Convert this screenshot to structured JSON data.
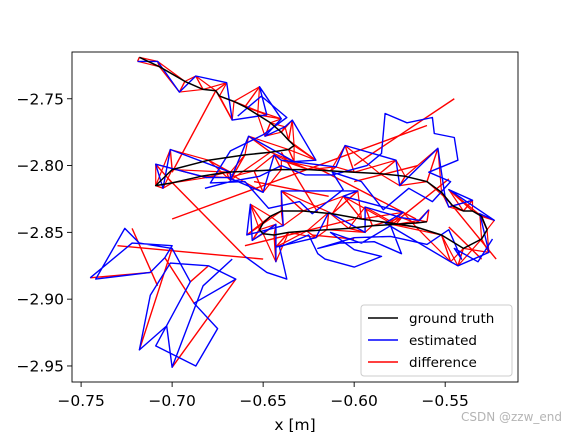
{
  "chart_data": {
    "type": "line",
    "xlabel": "x [m]",
    "ylabel": "",
    "xlim": [
      -0.755,
      -0.51
    ],
    "ylim": [
      -2.962,
      -2.715
    ],
    "xticks": [
      -0.75,
      -0.7,
      -0.65,
      -0.6,
      -0.55
    ],
    "xtick_labels": [
      "−0.75",
      "−0.70",
      "−0.65",
      "−0.60",
      "−0.55"
    ],
    "yticks": [
      -2.75,
      -2.8,
      -2.85,
      -2.9,
      -2.95
    ],
    "ytick_labels": [
      "−2.75",
      "−2.80",
      "−2.85",
      "−2.90",
      "−2.95"
    ],
    "grid": false,
    "legend_position": "lower-right",
    "series": [
      {
        "name": "ground truth",
        "color": "#000000",
        "x": [
          -0.718,
          -0.707,
          -0.693,
          -0.683,
          -0.676,
          -0.674,
          -0.666,
          -0.66,
          -0.653,
          -0.646,
          -0.64,
          -0.636,
          -0.633,
          -0.636,
          -0.646,
          -0.66,
          -0.68,
          -0.7,
          -0.709,
          -0.7,
          -0.684,
          -0.67,
          -0.655,
          -0.64,
          -0.625,
          -0.613,
          -0.6,
          -0.586,
          -0.572,
          -0.56,
          -0.552,
          -0.546,
          -0.54,
          -0.535,
          -0.53,
          -0.527,
          -0.53,
          -0.54,
          -0.552,
          -0.566,
          -0.58,
          -0.596,
          -0.612,
          -0.628,
          -0.64,
          -0.646,
          -0.65,
          -0.652,
          -0.65,
          -0.644,
          -0.636,
          -0.626,
          -0.615,
          -0.603,
          -0.59,
          -0.577,
          -0.566,
          -0.56
        ],
        "y": [
          -2.719,
          -2.726,
          -2.737,
          -2.743,
          -2.744,
          -2.748,
          -2.752,
          -2.756,
          -2.762,
          -2.768,
          -2.775,
          -2.781,
          -2.785,
          -2.788,
          -2.79,
          -2.792,
          -2.796,
          -2.803,
          -2.815,
          -2.813,
          -2.808,
          -2.805,
          -2.804,
          -2.803,
          -2.803,
          -2.804,
          -2.805,
          -2.806,
          -2.808,
          -2.812,
          -2.82,
          -2.83,
          -2.834,
          -2.834,
          -2.838,
          -2.848,
          -2.855,
          -2.862,
          -2.852,
          -2.846,
          -2.843,
          -2.84,
          -2.836,
          -2.834,
          -2.834,
          -2.838,
          -2.843,
          -2.848,
          -2.851,
          -2.852,
          -2.85,
          -2.849,
          -2.848,
          -2.847,
          -2.845,
          -2.844,
          -2.843,
          -2.842
        ]
      },
      {
        "name": "estimated",
        "color": "#0000ff",
        "x": [
          -0.719,
          -0.708,
          -0.696,
          -0.687,
          -0.67,
          -0.667,
          -0.648,
          -0.652,
          -0.64,
          -0.649,
          -0.638,
          -0.634,
          -0.621,
          -0.633,
          -0.658,
          -0.668,
          -0.668,
          -0.701,
          -0.705,
          -0.709,
          -0.681,
          -0.669,
          -0.65,
          -0.644,
          -0.64,
          -0.61,
          -0.605,
          -0.577,
          -0.575,
          -0.554,
          -0.55,
          -0.548,
          -0.535,
          -0.548,
          -0.523,
          -0.531,
          -0.526,
          -0.543,
          -0.547,
          -0.583,
          -0.573,
          -0.606,
          -0.598,
          -0.64,
          -0.639,
          -0.659,
          -0.657,
          -0.656,
          -0.643,
          -0.643,
          -0.643,
          -0.621,
          -0.614,
          -0.594,
          -0.594,
          -0.574,
          -0.564,
          -0.559
        ],
        "y": [
          -2.722,
          -2.722,
          -2.745,
          -2.733,
          -2.738,
          -2.766,
          -2.762,
          -2.741,
          -2.765,
          -2.778,
          -2.771,
          -2.766,
          -2.796,
          -2.797,
          -2.778,
          -2.811,
          -2.805,
          -2.788,
          -2.817,
          -2.799,
          -2.809,
          -2.809,
          -2.82,
          -2.792,
          -2.796,
          -2.801,
          -2.785,
          -2.796,
          -2.815,
          -2.787,
          -2.824,
          -2.831,
          -2.826,
          -2.818,
          -2.841,
          -2.836,
          -2.865,
          -2.875,
          -2.872,
          -2.843,
          -2.835,
          -2.823,
          -2.819,
          -2.819,
          -2.845,
          -2.852,
          -2.829,
          -2.856,
          -2.844,
          -2.872,
          -2.861,
          -2.854,
          -2.835,
          -2.85,
          -2.831,
          -2.839,
          -2.841,
          -2.833
        ]
      },
      {
        "name": "difference",
        "color": "#ff0000"
      }
    ],
    "extra_estimated": [
      {
        "x": [
          -0.745,
          -0.722,
          -0.7,
          -0.704,
          -0.712,
          -0.742,
          -0.726,
          -0.718,
          -0.7,
          -0.69,
          -0.709,
          -0.687,
          -0.675,
          -0.688,
          -0.665,
          -0.68,
          -0.701,
          -0.712,
          -0.718,
          -0.703,
          -0.7,
          -0.683,
          -0.667
        ],
        "y": [
          -2.884,
          -2.858,
          -2.86,
          -2.869,
          -2.88,
          -2.885,
          -2.847,
          -2.858,
          -2.862,
          -2.887,
          -2.935,
          -2.95,
          -2.922,
          -2.903,
          -2.885,
          -2.875,
          -2.873,
          -2.897,
          -2.938,
          -2.92,
          -2.951,
          -2.89,
          -2.87
        ]
      },
      {
        "x": [
          -0.66,
          -0.648,
          -0.637,
          -0.641,
          -0.625,
          -0.62,
          -0.616,
          -0.6,
          -0.585,
          -0.6,
          -0.613,
          -0.596,
          -0.58,
          -0.574,
          -0.589,
          -0.608,
          -0.62,
          -0.6,
          -0.58,
          -0.56,
          -0.548,
          -0.541,
          -0.545,
          -0.532,
          -0.524
        ],
        "y": [
          -2.868,
          -2.88,
          -2.885,
          -2.861,
          -2.852,
          -2.866,
          -2.87,
          -2.876,
          -2.868,
          -2.863,
          -2.85,
          -2.858,
          -2.845,
          -2.866,
          -2.857,
          -2.858,
          -2.862,
          -2.854,
          -2.853,
          -2.859,
          -2.848,
          -2.87,
          -2.862,
          -2.872,
          -2.855
        ]
      },
      {
        "x": [
          -0.664,
          -0.651,
          -0.637,
          -0.65,
          -0.668,
          -0.679,
          -0.66,
          -0.647,
          -0.63,
          -0.623,
          -0.606,
          -0.612,
          -0.596,
          -0.584,
          -0.57,
          -0.557,
          -0.547,
          -0.559,
          -0.543,
          -0.545,
          -0.556,
          -0.557,
          -0.571,
          -0.583,
          -0.585,
          -0.593,
          -0.612,
          -0.627,
          -0.64,
          -0.652,
          -0.668,
          -0.682
        ],
        "y": [
          -2.763,
          -2.748,
          -2.764,
          -2.777,
          -2.789,
          -2.813,
          -2.812,
          -2.832,
          -2.827,
          -2.836,
          -2.818,
          -2.805,
          -2.812,
          -2.833,
          -2.817,
          -2.827,
          -2.812,
          -2.805,
          -2.796,
          -2.779,
          -2.776,
          -2.764,
          -2.768,
          -2.761,
          -2.791,
          -2.8,
          -2.807,
          -2.807,
          -2.8,
          -2.808,
          -2.812,
          -2.817
        ]
      }
    ],
    "extra_difference": [
      {
        "x": [
          -0.745,
          -0.712,
          -0.7,
          -0.718,
          -0.704,
          -0.688,
          -0.665,
          -0.7,
          -0.68,
          -0.69,
          -0.708,
          -0.722,
          -0.73,
          -0.65,
          -0.7,
          -0.56,
          -0.6,
          -0.545,
          -0.522,
          -0.552,
          -0.6,
          -0.623,
          -0.66,
          -0.702,
          -0.62,
          -0.566,
          -0.548,
          -0.53,
          -0.676,
          -0.7,
          -0.655,
          -0.614,
          -0.565,
          -0.6,
          -0.64,
          -0.62,
          -0.58,
          -0.548,
          -0.6,
          -0.66
        ],
        "y": [
          -2.884,
          -2.88,
          -2.862,
          -2.938,
          -2.869,
          -2.903,
          -2.885,
          -2.951,
          -2.875,
          -2.887,
          -2.89,
          -2.847,
          -2.86,
          -2.87,
          -2.84,
          -2.77,
          -2.8,
          -2.75,
          -2.87,
          -2.82,
          -2.855,
          -2.852,
          -2.868,
          -2.81,
          -2.802,
          -2.84,
          -2.846,
          -2.87,
          -2.744,
          -2.805,
          -2.812,
          -2.823,
          -2.8,
          -2.812,
          -2.79,
          -2.835,
          -2.845,
          -2.81,
          -2.84,
          -2.86
        ]
      }
    ]
  },
  "watermark": "CSDN @zzw_end"
}
